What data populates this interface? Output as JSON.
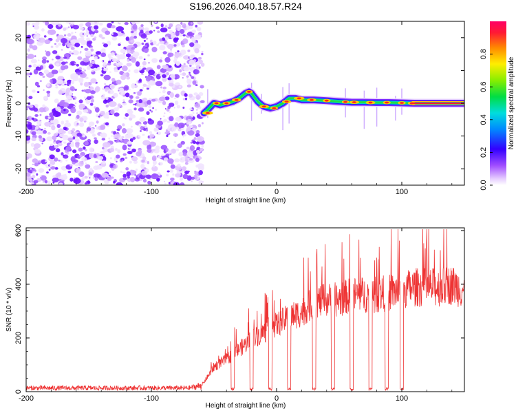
{
  "title": "S196.2026.040.18.57.R24",
  "chart_data": [
    {
      "type": "heatmap",
      "xlabel": "Height of straight line (km)",
      "ylabel": "Frequency (Hz)",
      "xlim": [
        -200,
        150
      ],
      "ylim": [
        -25,
        25
      ],
      "xticks": [
        -200,
        -100,
        0,
        100
      ],
      "xtick_labels": [
        "-200",
        "-100",
        "0",
        "100"
      ],
      "yticks": [
        -20,
        -10,
        0,
        10,
        20
      ],
      "ytick_labels": [
        "-20",
        "-10",
        "0",
        "10",
        "20"
      ],
      "noise_region_x": [
        -200,
        -60
      ],
      "signal_track": {
        "x": [
          -58,
          -55,
          -50,
          -45,
          -40,
          -35,
          -30,
          -25,
          -22,
          -20,
          -18,
          -15,
          -12,
          -10,
          -5,
          0,
          5,
          10,
          15,
          20,
          30,
          40,
          50,
          60,
          70,
          80,
          90,
          100,
          110,
          120,
          130,
          140,
          150
        ],
        "frequency": [
          -3,
          -2,
          0,
          -0.5,
          0,
          0.5,
          1.5,
          3,
          3.5,
          3,
          2,
          0.5,
          -0.5,
          -1,
          -1.5,
          -1,
          0,
          1.5,
          1.5,
          1,
          1,
          0.8,
          0.5,
          0.3,
          0.3,
          0.2,
          0.2,
          0.1,
          0,
          0,
          0,
          0,
          0
        ]
      },
      "colorbar": {
        "label": "Normalized spectral amplitude",
        "range": [
          0.0,
          1.0
        ],
        "ticks": [
          0.0,
          0.2,
          0.4,
          0.6,
          0.8
        ],
        "tick_labels": [
          "0.0",
          "0.2",
          "0.4",
          "0.6",
          "0.8"
        ]
      }
    },
    {
      "type": "line",
      "xlabel": "Height of straight line (km)",
      "ylabel": "SNR (10 * v/v)",
      "xlim": [
        -200,
        150
      ],
      "ylim": [
        0,
        610
      ],
      "xticks": [
        -200,
        -100,
        0,
        100
      ],
      "xtick_labels": [
        "-200",
        "-100",
        "0",
        "100"
      ],
      "yticks": [
        0,
        200,
        400,
        600
      ],
      "ytick_labels": [
        "0",
        "200",
        "400",
        "600"
      ],
      "color": "#ee3333",
      "series": [
        {
          "name": "SNR",
          "envelope_x": [
            -200,
            -150,
            -100,
            -70,
            -60,
            -55,
            -50,
            -40,
            -30,
            -20,
            -10,
            0,
            10,
            20,
            30,
            40,
            50,
            60,
            70,
            80,
            90,
            100,
            110,
            120,
            130,
            140,
            150
          ],
          "envelope_y": [
            15,
            15,
            15,
            15,
            25,
            60,
            100,
            130,
            170,
            210,
            240,
            270,
            300,
            320,
            360,
            370,
            370,
            390,
            390,
            390,
            400,
            410,
            420,
            420,
            420,
            430,
            410
          ],
          "gaps_x": [
            -35,
            -20,
            -5,
            10,
            30,
            45,
            60,
            75,
            88,
            100
          ]
        }
      ]
    }
  ]
}
